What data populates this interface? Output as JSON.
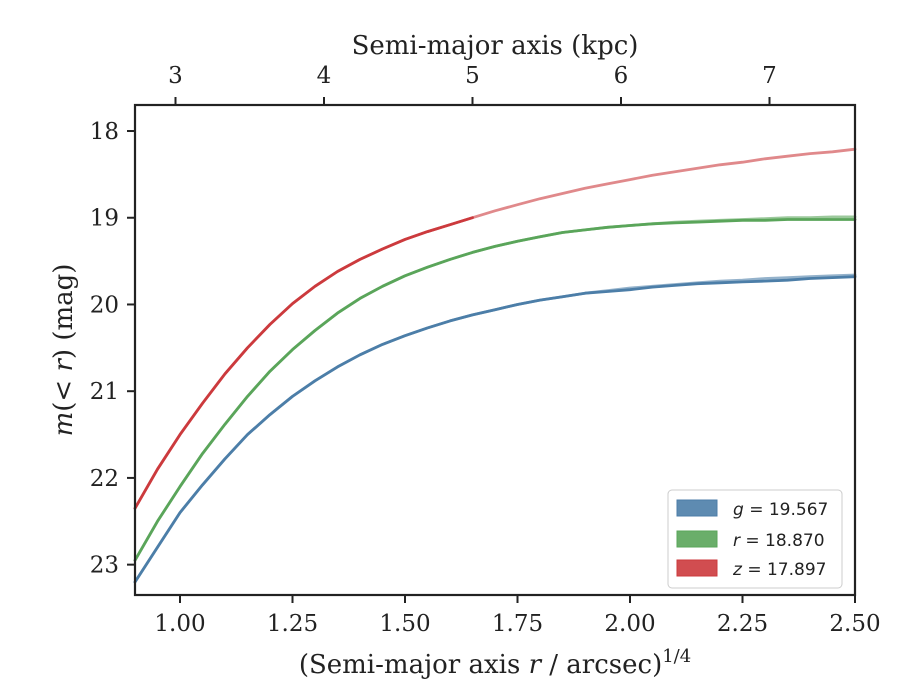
{
  "chart_data": {
    "type": "line",
    "x_axis": {
      "label_prefix": "(Semi-major axis ",
      "label_var": "r",
      "label_mid": " / arcsec)",
      "label_sup": "1/4",
      "ticks": [
        1.0,
        1.25,
        1.5,
        1.75,
        2.0,
        2.25,
        2.5
      ],
      "tick_labels": [
        "1.00",
        "1.25",
        "1.50",
        "1.75",
        "2.00",
        "2.25",
        "2.50"
      ],
      "range": [
        0.9,
        2.5
      ]
    },
    "top_axis": {
      "label": "Semi-major axis (kpc)",
      "ticks": [
        3,
        4,
        5,
        6,
        7
      ],
      "tick_labels": [
        "3",
        "4",
        "5",
        "6",
        "7"
      ],
      "tick_positions_x": [
        0.99,
        1.32,
        1.65,
        1.98,
        2.31
      ]
    },
    "y_axis": {
      "label_var": "m",
      "label_paren": "(< ",
      "label_var2": "r",
      "label_rest": ") (mag)",
      "ticks": [
        18,
        19,
        20,
        21,
        22,
        23
      ],
      "tick_labels": [
        "18",
        "19",
        "20",
        "21",
        "22",
        "23"
      ],
      "range": [
        23.35,
        17.7
      ],
      "inverted": true
    },
    "series": [
      {
        "name": "g",
        "legend": "= 19.567",
        "color": "#4c7ea8",
        "x": [
          0.9,
          0.95,
          1.0,
          1.05,
          1.1,
          1.15,
          1.2,
          1.25,
          1.3,
          1.35,
          1.4,
          1.45,
          1.5,
          1.55,
          1.6,
          1.65,
          1.7,
          1.75,
          1.8,
          1.85,
          1.9,
          1.95,
          2.0,
          2.05,
          2.1,
          2.15,
          2.2,
          2.25,
          2.3,
          2.35,
          2.4,
          2.45,
          2.5
        ],
        "y": [
          23.2,
          22.8,
          22.4,
          22.08,
          21.78,
          21.5,
          21.27,
          21.06,
          20.88,
          20.72,
          20.58,
          20.46,
          20.36,
          20.27,
          20.19,
          20.12,
          20.06,
          20.0,
          19.95,
          19.91,
          19.87,
          19.85,
          19.83,
          19.8,
          19.78,
          19.76,
          19.75,
          19.74,
          19.73,
          19.72,
          19.7,
          19.69,
          19.68
        ],
        "model": [
          23.2,
          22.8,
          22.4,
          22.08,
          21.78,
          21.5,
          21.27,
          21.06,
          20.88,
          20.72,
          20.58,
          20.46,
          20.36,
          20.27,
          20.19,
          20.12,
          20.06,
          20.0,
          19.95,
          19.91,
          19.87,
          19.84,
          19.81,
          19.79,
          19.77,
          19.75,
          19.73,
          19.72,
          19.7,
          19.69,
          19.68,
          19.67,
          19.66
        ]
      },
      {
        "name": "r",
        "legend": "= 18.870",
        "color": "#5aa55a",
        "x": [
          0.9,
          0.95,
          1.0,
          1.05,
          1.1,
          1.15,
          1.2,
          1.25,
          1.3,
          1.35,
          1.4,
          1.45,
          1.5,
          1.55,
          1.6,
          1.65,
          1.7,
          1.75,
          1.8,
          1.85,
          1.9,
          1.95,
          2.0,
          2.05,
          2.1,
          2.15,
          2.2,
          2.25,
          2.3,
          2.35,
          2.4,
          2.45,
          2.5
        ],
        "y": [
          22.95,
          22.5,
          22.1,
          21.72,
          21.38,
          21.06,
          20.77,
          20.52,
          20.3,
          20.1,
          19.93,
          19.79,
          19.67,
          19.57,
          19.48,
          19.4,
          19.33,
          19.27,
          19.22,
          19.17,
          19.14,
          19.11,
          19.09,
          19.07,
          19.06,
          19.05,
          19.04,
          19.03,
          19.03,
          19.02,
          19.02,
          19.02,
          19.02
        ],
        "model": [
          22.95,
          22.5,
          22.1,
          21.72,
          21.38,
          21.06,
          20.77,
          20.52,
          20.3,
          20.1,
          19.93,
          19.79,
          19.67,
          19.57,
          19.48,
          19.4,
          19.33,
          19.27,
          19.22,
          19.17,
          19.14,
          19.11,
          19.09,
          19.07,
          19.05,
          19.04,
          19.03,
          19.02,
          19.01,
          19.0,
          19.0,
          18.99,
          18.99
        ]
      },
      {
        "name": "z",
        "legend": "= 17.897",
        "color": "#cc3a3d",
        "x": [
          0.9,
          0.95,
          1.0,
          1.05,
          1.1,
          1.15,
          1.2,
          1.25,
          1.3,
          1.35,
          1.4,
          1.45,
          1.5,
          1.55,
          1.6,
          1.65
        ],
        "y": [
          22.35,
          21.9,
          21.5,
          21.14,
          20.8,
          20.5,
          20.23,
          19.99,
          19.79,
          19.62,
          19.48,
          19.36,
          19.25,
          19.16,
          19.08,
          19.0
        ],
        "model_x": [
          0.9,
          0.95,
          1.0,
          1.05,
          1.1,
          1.15,
          1.2,
          1.25,
          1.3,
          1.35,
          1.4,
          1.45,
          1.5,
          1.55,
          1.6,
          1.65,
          1.7,
          1.75,
          1.8,
          1.85,
          1.9,
          1.95,
          2.0,
          2.05,
          2.1,
          2.15,
          2.2,
          2.25,
          2.3,
          2.35,
          2.4,
          2.45,
          2.5
        ],
        "model": [
          22.35,
          21.9,
          21.5,
          21.14,
          20.8,
          20.5,
          20.23,
          19.99,
          19.79,
          19.62,
          19.48,
          19.36,
          19.25,
          19.16,
          19.08,
          19.0,
          18.92,
          18.85,
          18.78,
          18.72,
          18.66,
          18.61,
          18.56,
          18.51,
          18.47,
          18.43,
          18.39,
          18.36,
          18.32,
          18.29,
          18.26,
          18.24,
          18.21
        ]
      }
    ],
    "legend_position": "lower-right",
    "grid": false
  }
}
